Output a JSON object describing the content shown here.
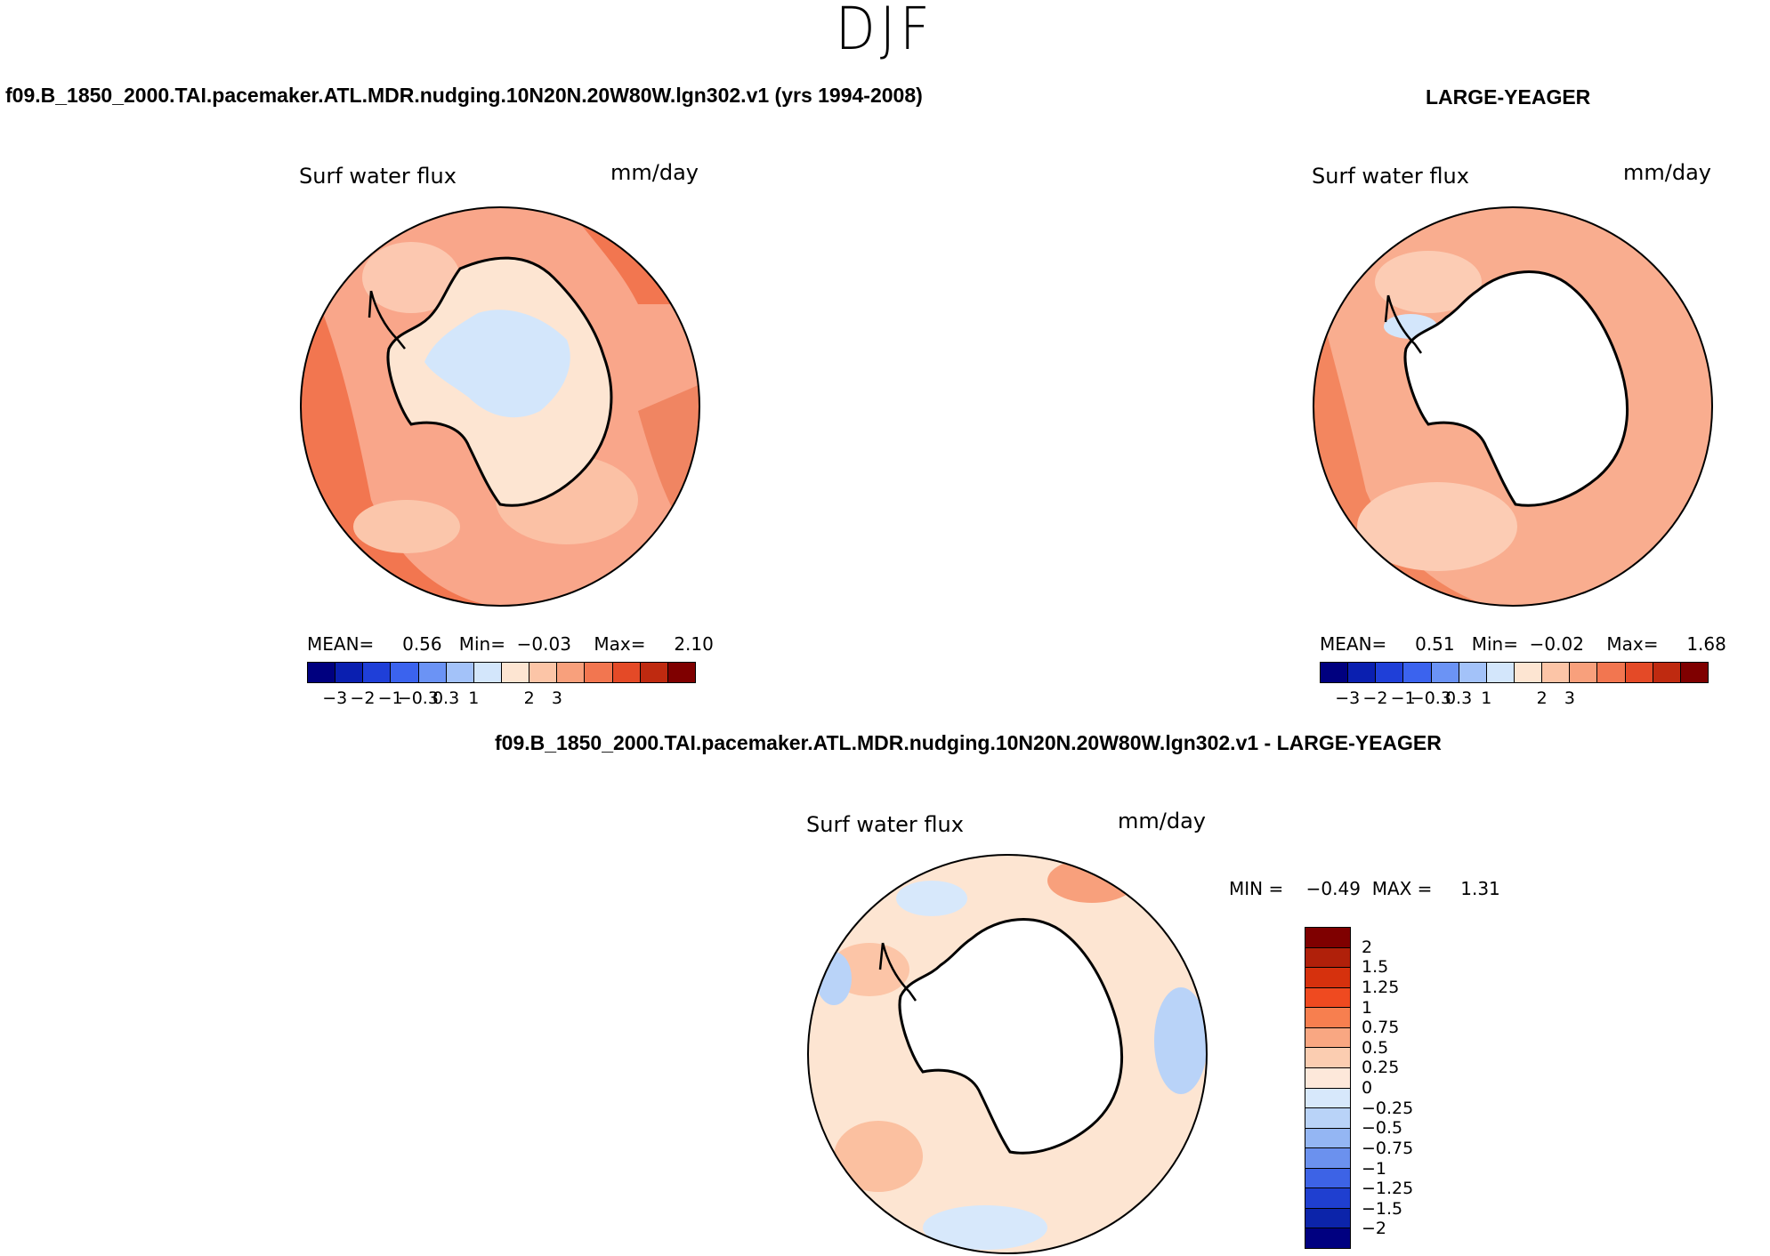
{
  "season": "DJF",
  "panels": {
    "top_left": {
      "case_title": "f09.B_1850_2000.TAI.pacemaker.ATL.MDR.nudging.10N20N.20W80W.lgn302.v1 (yrs 1994-2008)",
      "variable": "Surf water flux",
      "units": "mm/day",
      "stats": {
        "mean_label": "MEAN=",
        "mean": "0.56",
        "min_label": "Min=",
        "min": "−0.03",
        "max_label": "Max=",
        "max": "2.10"
      }
    },
    "top_right": {
      "case_title": "LARGE-YEAGER",
      "variable": "Surf water flux",
      "units": "mm/day",
      "stats": {
        "mean_label": "MEAN=",
        "mean": "0.51",
        "min_label": "Min=",
        "min": "−0.02",
        "max_label": "Max=",
        "max": "1.68"
      }
    },
    "bottom": {
      "case_title": "f09.B_1850_2000.TAI.pacemaker.ATL.MDR.nudging.10N20N.20W80W.lgn302.v1 - LARGE-YEAGER",
      "variable": "Surf water flux",
      "units": "mm/day",
      "stats": {
        "min_label": "MIN =",
        "min": "−0.49",
        "max_label": "MAX =",
        "max": "1.31"
      }
    }
  },
  "colorbar_main": {
    "colors": [
      "#00007f",
      "#0a1fb0",
      "#1f3fd8",
      "#3b63ee",
      "#6b93f5",
      "#a3c2f9",
      "#d3e6fb",
      "#fde5d2",
      "#fcc5a7",
      "#f8a07c",
      "#f27650",
      "#e44a27",
      "#bf2a10",
      "#7f0000"
    ],
    "tick_labels": [
      "−3",
      "−2",
      "−1",
      "−0.3",
      "0.3",
      "1",
      "2",
      "3"
    ]
  },
  "colorbar_diff": {
    "colors_top_to_bottom": [
      "#7f0000",
      "#b0200a",
      "#d6310d",
      "#ef4a20",
      "#f77f4f",
      "#f9a782",
      "#fbcdb1",
      "#fde8da",
      "#d7e8fb",
      "#b9d3f8",
      "#94b6f3",
      "#6b91ee",
      "#3d63e6",
      "#1f3fd0",
      "#0c24aa",
      "#000080"
    ],
    "tick_labels": [
      "2",
      "1.5",
      "1.25",
      "1",
      "0.75",
      "0.5",
      "0.25",
      "0",
      "−0.25",
      "−0.5",
      "−0.75",
      "−1",
      "−1.25",
      "−1.5",
      "−2"
    ]
  }
}
